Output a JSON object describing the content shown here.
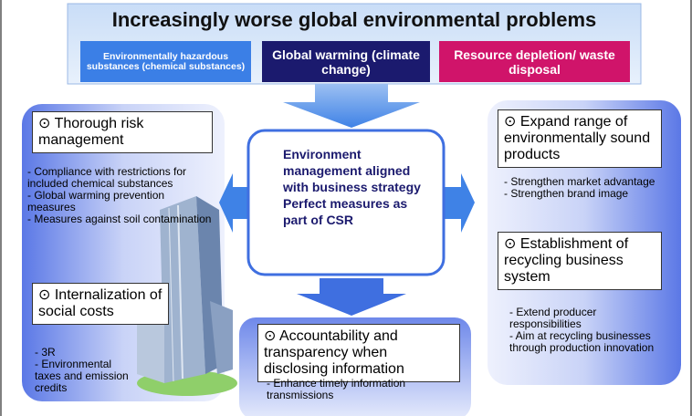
{
  "header": {
    "title": "Increasingly worse global environmental problems",
    "categories": [
      "Environmentally hazardous substances (chemical substances)",
      "Global warming (climate change)",
      "Resource depletion/ waste disposal"
    ]
  },
  "left": {
    "items": [
      {
        "heading": "⊙ Thorough risk management",
        "bullets": [
          "- Compliance with restrictions for included chemical substances",
          "- Global warming prevention measures",
          "- Measures against soil contamination"
        ]
      },
      {
        "heading": "⊙ Internalization of social costs",
        "bullets": [
          "- 3R",
          "- Environmental taxes and emission credits"
        ]
      }
    ]
  },
  "center": {
    "lines": [
      "Environment management aligned with business strategy",
      "Perfect measures as part of CSR"
    ]
  },
  "bottom": {
    "heading": "⊙ Accountability and transparency when disclosing information",
    "bullets": [
      "- Enhance timely information transmissions"
    ]
  },
  "right": {
    "items": [
      {
        "heading": "⊙ Expand range of environmentally sound products",
        "bullets": [
          "- Strengthen market advantage",
          "- Strengthen brand image"
        ]
      },
      {
        "heading": "⊙ Establishment of recycling business system",
        "bullets": [
          "- Extend producer responsibilities",
          "- Aim at recycling businesses through production innovation"
        ]
      }
    ]
  }
}
